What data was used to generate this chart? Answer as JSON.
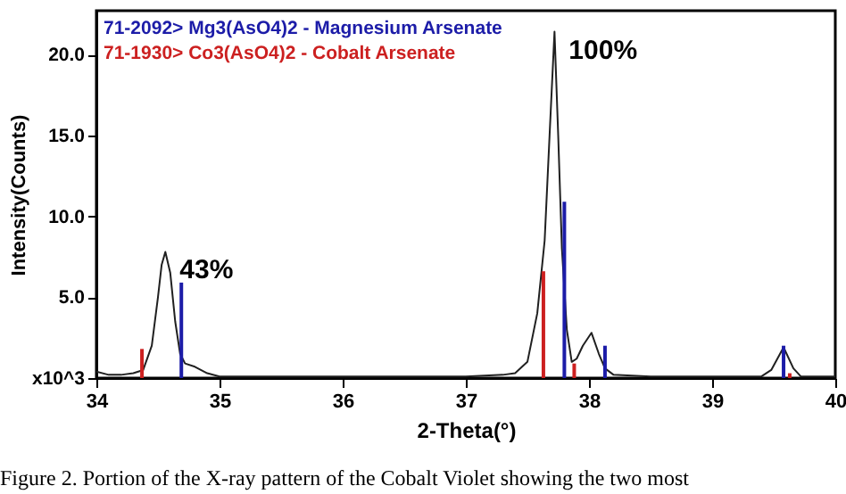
{
  "chart_data": {
    "type": "line",
    "xlabel": "2-Theta(°)",
    "ylabel": "Intensity(Counts)",
    "xlim": [
      34,
      40
    ],
    "xticks": [
      34,
      35,
      36,
      37,
      38,
      39,
      40
    ],
    "ylim": [
      0,
      22.7
    ],
    "yticks": [
      {
        "value": 0,
        "label": "x10^3"
      },
      {
        "value": 5,
        "label": "5.0"
      },
      {
        "value": 10,
        "label": "10.0"
      },
      {
        "value": 15,
        "label": "15.0"
      },
      {
        "value": 20,
        "label": "20.0"
      }
    ],
    "grid": false,
    "legend": "top left",
    "series": [
      {
        "color": "#202020",
        "x": [
          34.0,
          34.1,
          34.2,
          34.3,
          34.38,
          34.45,
          34.5,
          34.53,
          34.56,
          34.6,
          34.64,
          34.68,
          34.72,
          34.8,
          34.9,
          35.0,
          35.5,
          36.0,
          36.5,
          37.0,
          37.3,
          37.4,
          37.5,
          37.58,
          37.64,
          37.68,
          37.72,
          37.75,
          37.78,
          37.82,
          37.86,
          37.9,
          37.95,
          38.02,
          38.08,
          38.13,
          38.2,
          38.5,
          39.0,
          39.4,
          39.48,
          39.58,
          39.66,
          39.72,
          40.0
        ],
        "values": [
          0.4,
          0.2,
          0.2,
          0.3,
          0.5,
          2.0,
          5.0,
          7.0,
          7.8,
          6.5,
          3.5,
          1.5,
          0.9,
          0.7,
          0.3,
          0.1,
          0.1,
          0.1,
          0.1,
          0.1,
          0.2,
          0.3,
          1.0,
          4.0,
          8.5,
          15.0,
          21.4,
          15.0,
          8.0,
          3.0,
          1.0,
          1.2,
          2.0,
          2.8,
          1.5,
          0.6,
          0.2,
          0.1,
          0.1,
          0.1,
          0.5,
          1.9,
          0.6,
          0.1,
          0.1
        ]
      },
      {
        "type": "bar",
        "name": "71-2092> Mg3(AsO4)2 - Magnesium Arsenate",
        "color": "#1c1ca8",
        "x": [
          34.69,
          37.8,
          38.13,
          39.58
        ],
        "values": [
          5.9,
          10.9,
          2.0,
          2.0
        ]
      },
      {
        "type": "bar",
        "name": "71-1930> Co3(AsO4)2 - Cobalt Arsenate",
        "color": "#cc2020",
        "x": [
          34.37,
          37.63,
          37.88,
          39.63
        ],
        "values": [
          1.8,
          6.6,
          0.9,
          0.3
        ]
      }
    ],
    "annotations": [
      {
        "text": "43%",
        "x": 34.56,
        "y": 7.8
      },
      {
        "text": "100%",
        "x": 37.72,
        "y": 21.4
      },
      "Figure 2. Portion of the X-ray pattern of the Cobalt Violet showing the two most"
    ]
  }
}
